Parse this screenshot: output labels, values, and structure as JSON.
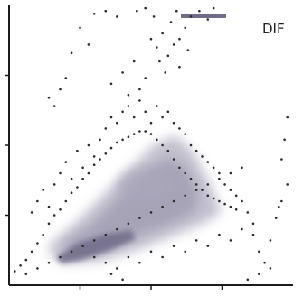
{
  "chart_data": {
    "type": "scatter",
    "title": "DIF",
    "xlabel": "",
    "ylabel": "",
    "xlim": [
      0,
      100
    ],
    "ylim": [
      0,
      100
    ],
    "grid": false,
    "legend": "none",
    "colors": {
      "axis": "#1c1c1c",
      "point": "#2a2a2a",
      "cloud_light": "#b9b6c6",
      "cloud_mid": "#9d9ab0",
      "cloud_dark": "#6e6b86",
      "top_bar": "#6f6c8a"
    },
    "series": [
      {
        "points": [
          [
            2,
            5
          ],
          [
            4,
            7
          ],
          [
            6,
            9
          ],
          [
            8,
            12
          ],
          [
            10,
            15
          ],
          [
            12,
            18
          ],
          [
            14,
            22
          ],
          [
            16,
            25
          ],
          [
            18,
            27
          ],
          [
            20,
            30
          ],
          [
            22,
            33
          ],
          [
            24,
            35
          ],
          [
            26,
            38
          ],
          [
            28,
            40
          ],
          [
            30,
            43
          ],
          [
            32,
            45
          ],
          [
            34,
            47
          ],
          [
            36,
            49
          ],
          [
            38,
            51
          ],
          [
            40,
            52
          ],
          [
            42,
            53
          ],
          [
            44,
            54
          ],
          [
            46,
            55
          ],
          [
            48,
            55
          ],
          [
            50,
            54
          ],
          [
            52,
            52
          ],
          [
            54,
            50
          ],
          [
            56,
            48
          ],
          [
            58,
            45
          ],
          [
            60,
            42
          ],
          [
            62,
            40
          ],
          [
            64,
            38
          ],
          [
            66,
            36
          ],
          [
            68,
            34
          ],
          [
            70,
            32
          ],
          [
            72,
            31
          ],
          [
            74,
            30
          ],
          [
            76,
            29
          ],
          [
            78,
            28
          ],
          [
            80,
            27
          ],
          [
            6,
            4
          ],
          [
            10,
            6
          ],
          [
            14,
            8
          ],
          [
            18,
            10
          ],
          [
            22,
            12
          ],
          [
            26,
            14
          ],
          [
            30,
            16
          ],
          [
            34,
            18
          ],
          [
            38,
            20
          ],
          [
            42,
            22
          ],
          [
            46,
            24
          ],
          [
            50,
            26
          ],
          [
            54,
            28
          ],
          [
            58,
            30
          ],
          [
            62,
            32
          ],
          [
            66,
            34
          ],
          [
            70,
            36
          ],
          [
            74,
            38
          ],
          [
            78,
            40
          ],
          [
            82,
            42
          ],
          [
            8,
            26
          ],
          [
            10,
            30
          ],
          [
            12,
            34
          ],
          [
            14,
            28
          ],
          [
            16,
            36
          ],
          [
            18,
            40
          ],
          [
            20,
            44
          ],
          [
            22,
            38
          ],
          [
            24,
            48
          ],
          [
            26,
            42
          ],
          [
            28,
            50
          ],
          [
            30,
            46
          ],
          [
            32,
            52
          ],
          [
            34,
            56
          ],
          [
            36,
            60
          ],
          [
            38,
            58
          ],
          [
            40,
            62
          ],
          [
            42,
            64
          ],
          [
            44,
            60
          ],
          [
            46,
            66
          ],
          [
            48,
            62
          ],
          [
            50,
            58
          ],
          [
            52,
            64
          ],
          [
            54,
            60
          ],
          [
            56,
            62
          ],
          [
            58,
            58
          ],
          [
            60,
            56
          ],
          [
            62,
            54
          ],
          [
            64,
            50
          ],
          [
            66,
            48
          ],
          [
            68,
            46
          ],
          [
            70,
            44
          ],
          [
            72,
            42
          ],
          [
            74,
            40
          ],
          [
            76,
            36
          ],
          [
            78,
            34
          ],
          [
            80,
            32
          ],
          [
            82,
            30
          ],
          [
            84,
            26
          ],
          [
            86,
            22
          ],
          [
            30,
            10
          ],
          [
            34,
            8
          ],
          [
            38,
            6
          ],
          [
            42,
            10
          ],
          [
            46,
            8
          ],
          [
            50,
            12
          ],
          [
            54,
            10
          ],
          [
            58,
            14
          ],
          [
            62,
            12
          ],
          [
            66,
            16
          ],
          [
            70,
            14
          ],
          [
            74,
            18
          ],
          [
            78,
            16
          ],
          [
            82,
            20
          ],
          [
            86,
            18
          ],
          [
            88,
            12
          ],
          [
            90,
            8
          ],
          [
            92,
            16
          ],
          [
            94,
            24
          ],
          [
            96,
            30
          ],
          [
            50,
            88
          ],
          [
            52,
            85
          ],
          [
            54,
            90
          ],
          [
            56,
            82
          ],
          [
            58,
            86
          ],
          [
            60,
            78
          ],
          [
            62,
            92
          ],
          [
            55,
            76
          ],
          [
            53,
            80
          ],
          [
            57,
            94
          ],
          [
            60,
            88
          ],
          [
            63,
            84
          ],
          [
            51,
            96
          ],
          [
            59,
            98
          ],
          [
            64,
            96
          ],
          [
            67,
            98
          ],
          [
            70,
            95
          ],
          [
            72,
            99
          ],
          [
            48,
            99
          ],
          [
            45,
            98
          ],
          [
            30,
            97
          ],
          [
            34,
            98
          ],
          [
            38,
            96
          ],
          [
            25,
            92
          ],
          [
            28,
            86
          ],
          [
            22,
            83
          ],
          [
            18,
            70
          ],
          [
            20,
            74
          ],
          [
            16,
            64
          ],
          [
            14,
            67
          ],
          [
            36,
            72
          ],
          [
            40,
            76
          ],
          [
            44,
            80
          ],
          [
            46,
            70
          ],
          [
            42,
            68
          ],
          [
            48,
            74
          ],
          [
            98,
            60
          ],
          [
            97,
            52
          ],
          [
            96,
            45
          ],
          [
            98,
            36
          ],
          [
            95,
            28
          ],
          [
            92,
            6
          ],
          [
            88,
            4
          ],
          [
            84,
            2
          ],
          [
            40,
            2
          ],
          [
            36,
            4
          ]
        ]
      }
    ]
  }
}
